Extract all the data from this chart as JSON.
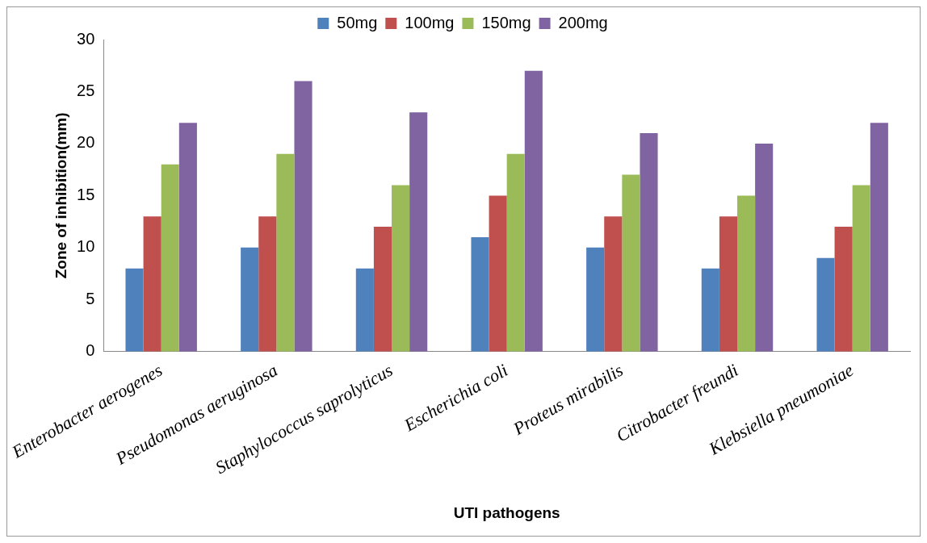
{
  "chart_data": {
    "type": "bar",
    "xlabel": "UTI pathogens",
    "ylabel": "Zone of inhibition(mm)",
    "categories": [
      "Enterobacter aerogenes",
      "Pseudomonas aeruginosa",
      "Staphylococcus saprolyticus",
      "Escherichia coli",
      "Proteus mirabilis",
      "Citrobacter freundi",
      "Klebsiella pneumoniae"
    ],
    "series": [
      {
        "name": "50mg",
        "color": "#4f81bd",
        "values": [
          8,
          10,
          8,
          11,
          10,
          8,
          9
        ]
      },
      {
        "name": "100mg",
        "color": "#c0504d",
        "values": [
          13,
          13,
          12,
          15,
          13,
          13,
          12
        ]
      },
      {
        "name": "150mg",
        "color": "#9bbb59",
        "values": [
          18,
          19,
          16,
          19,
          17,
          15,
          16
        ]
      },
      {
        "name": "200mg",
        "color": "#8064a2",
        "values": [
          22,
          26,
          23,
          27,
          21,
          20,
          22
        ]
      }
    ],
    "ylim": [
      0,
      30
    ],
    "yticks": [
      0,
      5,
      10,
      15,
      20,
      25,
      30
    ],
    "grid": false,
    "legend": "top"
  }
}
